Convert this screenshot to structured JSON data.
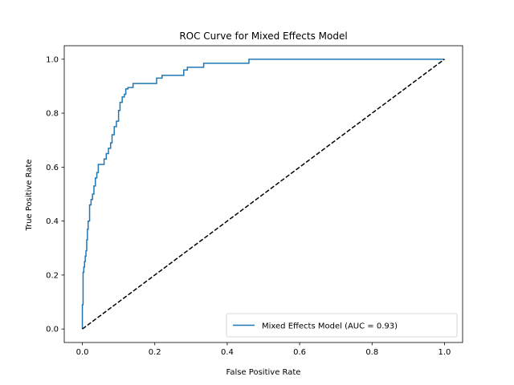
{
  "chart_data": {
    "type": "line",
    "title": "ROC Curve for Mixed Effects Model",
    "xlabel": "False Positive Rate",
    "ylabel": "True Positive Rate",
    "xlim": [
      -0.05,
      1.05
    ],
    "ylim": [
      -0.05,
      1.05
    ],
    "xticks": [
      0.0,
      0.2,
      0.4,
      0.6,
      0.8,
      1.0
    ],
    "yticks": [
      0.0,
      0.2,
      0.4,
      0.6,
      0.8,
      1.0
    ],
    "xtick_labels": [
      "0.0",
      "0.2",
      "0.4",
      "0.6",
      "0.8",
      "1.0"
    ],
    "ytick_labels": [
      "0.0",
      "0.2",
      "0.4",
      "0.6",
      "0.8",
      "1.0"
    ],
    "grid": false,
    "legend_position": "lower-right",
    "series": [
      {
        "name": "Mixed Effects Model (AUC = 0.93)",
        "color": "#1f77b4",
        "style": "solid",
        "x": [
          0.0,
          0.0,
          0.002,
          0.002,
          0.004,
          0.004,
          0.006,
          0.006,
          0.008,
          0.008,
          0.01,
          0.01,
          0.012,
          0.012,
          0.014,
          0.014,
          0.016,
          0.016,
          0.02,
          0.02,
          0.024,
          0.024,
          0.028,
          0.028,
          0.032,
          0.032,
          0.036,
          0.036,
          0.04,
          0.04,
          0.044,
          0.044,
          0.06,
          0.06,
          0.066,
          0.066,
          0.072,
          0.072,
          0.078,
          0.078,
          0.082,
          0.082,
          0.088,
          0.088,
          0.094,
          0.094,
          0.1,
          0.1,
          0.104,
          0.104,
          0.11,
          0.11,
          0.116,
          0.116,
          0.12,
          0.12,
          0.126,
          0.126,
          0.14,
          0.14,
          0.205,
          0.205,
          0.22,
          0.22,
          0.28,
          0.28,
          0.29,
          0.29,
          0.335,
          0.335,
          0.46,
          0.46,
          1.0
        ],
        "y": [
          0.0,
          0.09,
          0.09,
          0.21,
          0.21,
          0.23,
          0.23,
          0.25,
          0.25,
          0.27,
          0.27,
          0.29,
          0.29,
          0.33,
          0.33,
          0.37,
          0.37,
          0.4,
          0.4,
          0.46,
          0.46,
          0.48,
          0.48,
          0.5,
          0.5,
          0.53,
          0.53,
          0.56,
          0.56,
          0.58,
          0.58,
          0.61,
          0.61,
          0.63,
          0.63,
          0.65,
          0.65,
          0.67,
          0.67,
          0.69,
          0.69,
          0.72,
          0.72,
          0.75,
          0.75,
          0.77,
          0.77,
          0.81,
          0.81,
          0.84,
          0.84,
          0.86,
          0.86,
          0.87,
          0.87,
          0.89,
          0.89,
          0.895,
          0.895,
          0.91,
          0.91,
          0.93,
          0.93,
          0.94,
          0.94,
          0.96,
          0.96,
          0.97,
          0.97,
          0.985,
          0.985,
          1.0,
          1.0
        ]
      },
      {
        "name": "",
        "color": "#000000",
        "style": "dashed",
        "x": [
          0.0,
          1.0
        ],
        "y": [
          0.0,
          1.0
        ]
      }
    ]
  }
}
